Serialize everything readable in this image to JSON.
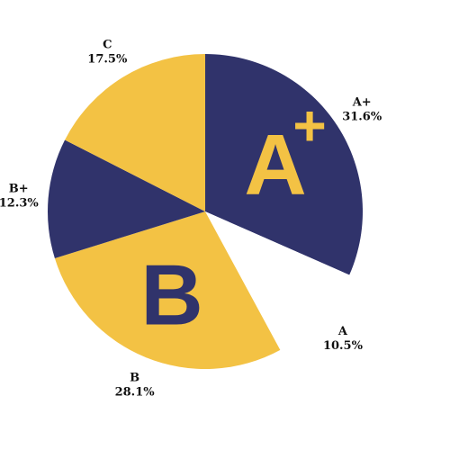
{
  "chart_data": {
    "type": "pie",
    "start_angle_deg": 0,
    "direction": "clockwise",
    "slices": [
      {
        "label": "A+",
        "value": 31.6,
        "value_label": "31.6%",
        "color": "#30336b",
        "exploded": false
      },
      {
        "label": "A",
        "value": 10.5,
        "value_label": "10.5%",
        "color": "#ffffff",
        "exploded": false
      },
      {
        "label": "B",
        "value": 28.1,
        "value_label": "28.1%",
        "color": "#f3c244",
        "exploded": false
      },
      {
        "label": "B+",
        "value": 12.3,
        "value_label": "12.3%",
        "color": "#30336b",
        "exploded": false
      },
      {
        "label": "C",
        "value": 17.5,
        "value_label": "17.5%",
        "color": "#f3c244",
        "exploded": false
      }
    ],
    "overlays": [
      {
        "slice": "A+",
        "text": "A",
        "superscript": "+",
        "color": "#f3c244"
      },
      {
        "slice": "B",
        "text": "B",
        "color": "#30336b"
      }
    ],
    "legend": "none"
  }
}
